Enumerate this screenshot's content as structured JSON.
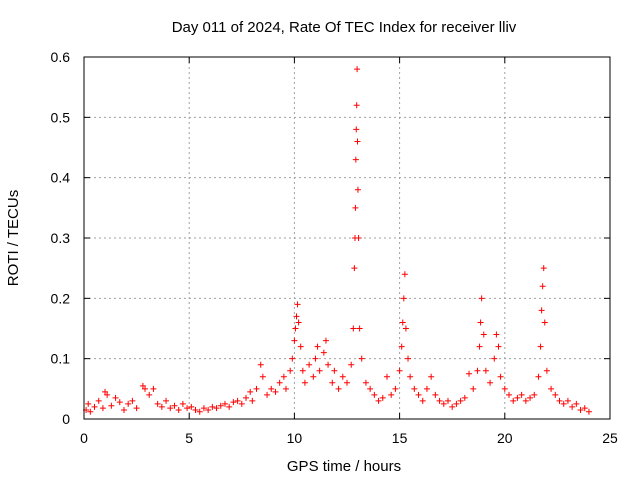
{
  "chart_data": {
    "type": "scatter",
    "title": "Day 011 of 2024, Rate Of TEC Index for receiver lliv",
    "xlabel": "GPS time / hours",
    "ylabel": "ROTI / TECUs",
    "xlim": [
      0,
      25
    ],
    "ylim": [
      0,
      0.6
    ],
    "x_ticks": [
      0,
      5,
      10,
      15,
      20,
      25
    ],
    "x_tick_labels": [
      "0",
      "5",
      "10",
      "15",
      "20",
      "25"
    ],
    "y_ticks": [
      0,
      0.1,
      0.2,
      0.3,
      0.4,
      0.5,
      0.6
    ],
    "y_tick_labels": [
      "0",
      "0.1",
      "0.2",
      "0.3",
      "0.4",
      "0.5",
      "0.6"
    ],
    "grid": true,
    "marker": "+",
    "color": "#ff0000",
    "series": [
      {
        "name": "ROTI",
        "points": [
          [
            0.1,
            0.015
          ],
          [
            0.2,
            0.025
          ],
          [
            0.3,
            0.012
          ],
          [
            0.5,
            0.02
          ],
          [
            0.7,
            0.03
          ],
          [
            0.9,
            0.018
          ],
          [
            1.0,
            0.045
          ],
          [
            1.1,
            0.04
          ],
          [
            1.3,
            0.022
          ],
          [
            1.5,
            0.035
          ],
          [
            1.7,
            0.028
          ],
          [
            1.9,
            0.015
          ],
          [
            2.1,
            0.025
          ],
          [
            2.3,
            0.03
          ],
          [
            2.5,
            0.018
          ],
          [
            2.8,
            0.055
          ],
          [
            2.9,
            0.05
          ],
          [
            3.1,
            0.04
          ],
          [
            3.3,
            0.05
          ],
          [
            3.5,
            0.025
          ],
          [
            3.7,
            0.02
          ],
          [
            3.9,
            0.03
          ],
          [
            4.1,
            0.018
          ],
          [
            4.3,
            0.022
          ],
          [
            4.5,
            0.015
          ],
          [
            4.7,
            0.025
          ],
          [
            4.9,
            0.018
          ],
          [
            5.1,
            0.02
          ],
          [
            5.3,
            0.015
          ],
          [
            5.5,
            0.012
          ],
          [
            5.7,
            0.018
          ],
          [
            5.9,
            0.015
          ],
          [
            6.1,
            0.02
          ],
          [
            6.3,
            0.018
          ],
          [
            6.5,
            0.022
          ],
          [
            6.7,
            0.025
          ],
          [
            6.9,
            0.02
          ],
          [
            7.1,
            0.028
          ],
          [
            7.3,
            0.03
          ],
          [
            7.5,
            0.025
          ],
          [
            7.7,
            0.035
          ],
          [
            7.9,
            0.045
          ],
          [
            8.0,
            0.03
          ],
          [
            8.2,
            0.05
          ],
          [
            8.4,
            0.09
          ],
          [
            8.5,
            0.07
          ],
          [
            8.7,
            0.04
          ],
          [
            8.9,
            0.05
          ],
          [
            9.1,
            0.045
          ],
          [
            9.3,
            0.06
          ],
          [
            9.5,
            0.07
          ],
          [
            9.6,
            0.05
          ],
          [
            9.8,
            0.08
          ],
          [
            9.9,
            0.1
          ],
          [
            10.0,
            0.13
          ],
          [
            10.05,
            0.15
          ],
          [
            10.1,
            0.17
          ],
          [
            10.15,
            0.19
          ],
          [
            10.2,
            0.16
          ],
          [
            10.3,
            0.12
          ],
          [
            10.4,
            0.08
          ],
          [
            10.5,
            0.06
          ],
          [
            10.7,
            0.09
          ],
          [
            10.9,
            0.07
          ],
          [
            11.0,
            0.1
          ],
          [
            11.1,
            0.12
          ],
          [
            11.2,
            0.08
          ],
          [
            11.4,
            0.11
          ],
          [
            11.5,
            0.13
          ],
          [
            11.6,
            0.09
          ],
          [
            11.8,
            0.06
          ],
          [
            11.9,
            0.08
          ],
          [
            12.1,
            0.05
          ],
          [
            12.3,
            0.07
          ],
          [
            12.5,
            0.06
          ],
          [
            12.7,
            0.09
          ],
          [
            12.8,
            0.15
          ],
          [
            12.85,
            0.25
          ],
          [
            12.88,
            0.3
          ],
          [
            12.9,
            0.35
          ],
          [
            12.92,
            0.43
          ],
          [
            12.94,
            0.48
          ],
          [
            12.96,
            0.52
          ],
          [
            12.98,
            0.58
          ],
          [
            13.0,
            0.46
          ],
          [
            13.02,
            0.38
          ],
          [
            13.05,
            0.3
          ],
          [
            13.1,
            0.15
          ],
          [
            13.2,
            0.1
          ],
          [
            13.4,
            0.06
          ],
          [
            13.6,
            0.05
          ],
          [
            13.8,
            0.04
          ],
          [
            14.0,
            0.03
          ],
          [
            14.2,
            0.035
          ],
          [
            14.4,
            0.07
          ],
          [
            14.6,
            0.04
          ],
          [
            14.8,
            0.05
          ],
          [
            15.0,
            0.08
          ],
          [
            15.1,
            0.12
          ],
          [
            15.15,
            0.16
          ],
          [
            15.2,
            0.2
          ],
          [
            15.25,
            0.24
          ],
          [
            15.3,
            0.15
          ],
          [
            15.4,
            0.1
          ],
          [
            15.5,
            0.07
          ],
          [
            15.7,
            0.05
          ],
          [
            15.9,
            0.04
          ],
          [
            16.1,
            0.03
          ],
          [
            16.3,
            0.05
          ],
          [
            16.5,
            0.07
          ],
          [
            16.7,
            0.04
          ],
          [
            16.9,
            0.03
          ],
          [
            17.1,
            0.025
          ],
          [
            17.3,
            0.03
          ],
          [
            17.5,
            0.02
          ],
          [
            17.7,
            0.025
          ],
          [
            17.9,
            0.03
          ],
          [
            18.1,
            0.035
          ],
          [
            18.3,
            0.075
          ],
          [
            18.5,
            0.05
          ],
          [
            18.7,
            0.08
          ],
          [
            18.8,
            0.12
          ],
          [
            18.85,
            0.16
          ],
          [
            18.9,
            0.2
          ],
          [
            19.0,
            0.14
          ],
          [
            19.1,
            0.08
          ],
          [
            19.3,
            0.06
          ],
          [
            19.5,
            0.1
          ],
          [
            19.6,
            0.14
          ],
          [
            19.7,
            0.12
          ],
          [
            19.8,
            0.07
          ],
          [
            20.0,
            0.05
          ],
          [
            20.2,
            0.04
          ],
          [
            20.4,
            0.03
          ],
          [
            20.6,
            0.035
          ],
          [
            20.8,
            0.04
          ],
          [
            21.0,
            0.03
          ],
          [
            21.2,
            0.035
          ],
          [
            21.4,
            0.04
          ],
          [
            21.6,
            0.07
          ],
          [
            21.7,
            0.12
          ],
          [
            21.75,
            0.18
          ],
          [
            21.8,
            0.22
          ],
          [
            21.85,
            0.25
          ],
          [
            21.9,
            0.16
          ],
          [
            22.0,
            0.08
          ],
          [
            22.2,
            0.05
          ],
          [
            22.4,
            0.04
          ],
          [
            22.6,
            0.03
          ],
          [
            22.8,
            0.025
          ],
          [
            23.0,
            0.03
          ],
          [
            23.2,
            0.02
          ],
          [
            23.4,
            0.025
          ],
          [
            23.6,
            0.015
          ],
          [
            23.8,
            0.018
          ],
          [
            24.0,
            0.012
          ]
        ]
      }
    ]
  }
}
